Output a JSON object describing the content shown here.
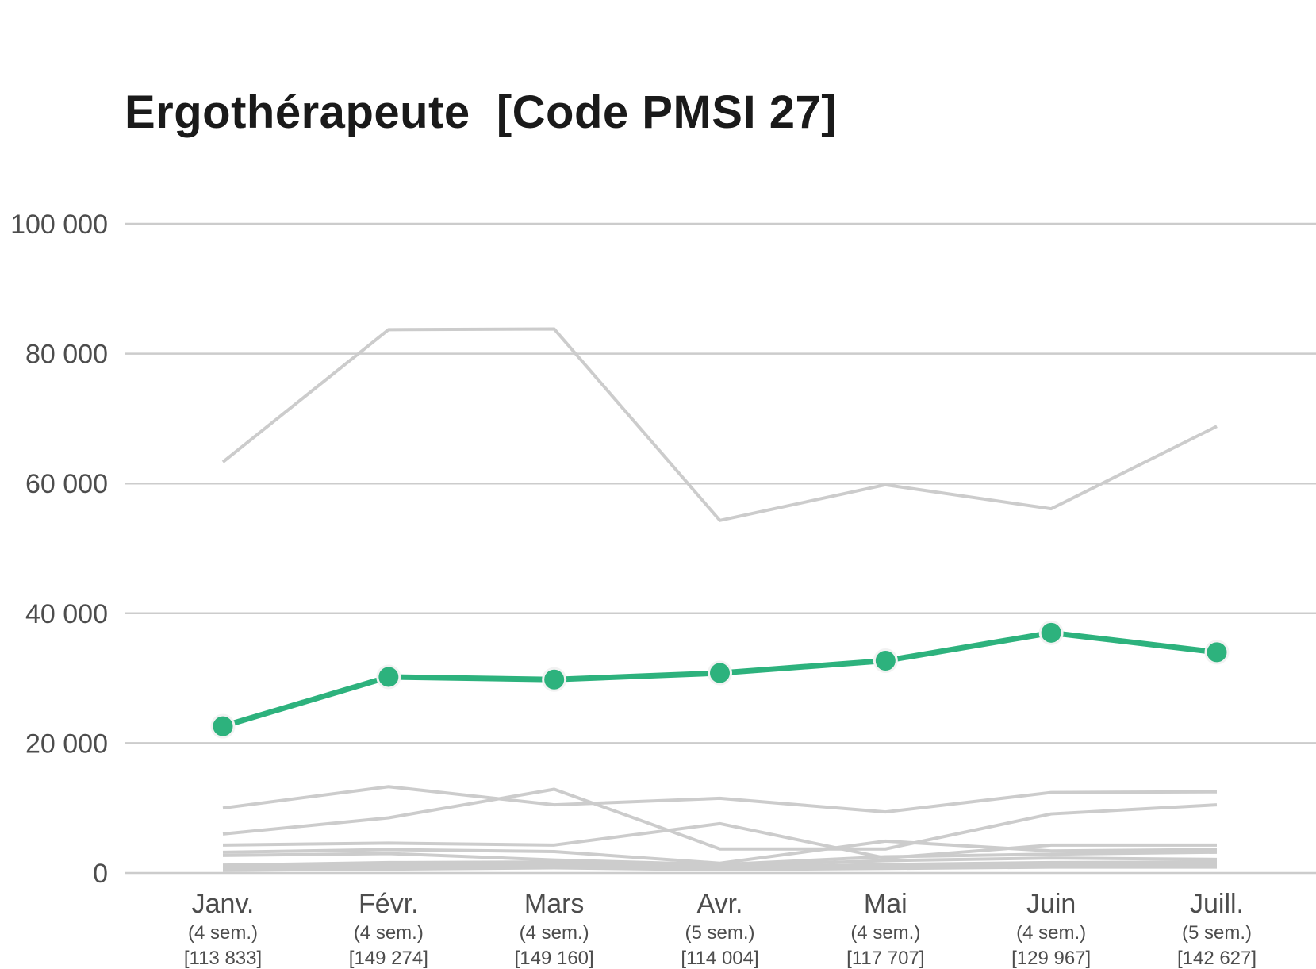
{
  "chart_data": {
    "type": "line",
    "title": "Ergothérapeute  [Code PMSI 27]",
    "xlabel": "",
    "ylabel": "",
    "ylim": [
      0,
      100000
    ],
    "yticks": [
      0,
      20000,
      40000,
      60000,
      80000,
      100000
    ],
    "ytick_labels": [
      "0",
      "20 000",
      "40 000",
      "60 000",
      "80 000",
      "100 000"
    ],
    "grid": true,
    "categories": [
      {
        "month": "Janv.",
        "weeks": "(4 sem.)",
        "total": "[113 833]"
      },
      {
        "month": "Févr.",
        "weeks": "(4 sem.)",
        "total": "[149 274]"
      },
      {
        "month": "Mars",
        "weeks": "(4 sem.)",
        "total": "[149 160]"
      },
      {
        "month": "Avr.",
        "weeks": "(5 sem.)",
        "total": "[114 004]"
      },
      {
        "month": "Mai",
        "weeks": "(4 sem.)",
        "total": "[117 707]"
      },
      {
        "month": "Juin",
        "weeks": "(4 sem.)",
        "total": "[129 967]"
      },
      {
        "month": "Juill.",
        "weeks": "(5 sem.)",
        "total": "[142 627]"
      }
    ],
    "highlight_color": "#2db27d",
    "background_color": "#cccccc",
    "highlight_series": {
      "values": [
        22600,
        30200,
        29800,
        30800,
        32700,
        37000,
        34000
      ]
    },
    "background_series": [
      {
        "values": [
          63300,
          83700,
          83800,
          54300,
          59800,
          56100,
          68800
        ]
      },
      {
        "values": [
          10000,
          13300,
          10500,
          11500,
          9400,
          12400,
          12500
        ]
      },
      {
        "values": [
          6000,
          8500,
          12900,
          3700,
          3700,
          9100,
          10500
        ]
      },
      {
        "values": [
          4300,
          4600,
          4300,
          7600,
          2300,
          4300,
          4300
        ]
      },
      {
        "values": [
          3200,
          3600,
          3300,
          1500,
          4900,
          3400,
          3600
        ]
      },
      {
        "values": [
          2700,
          3000,
          2000,
          1300,
          2500,
          2900,
          3200
        ]
      },
      {
        "values": [
          1200,
          1600,
          1700,
          1100,
          1900,
          2300,
          2100
        ]
      },
      {
        "values": [
          900,
          1200,
          1400,
          900,
          1300,
          1600,
          1700
        ]
      },
      {
        "values": [
          600,
          900,
          1100,
          700,
          1000,
          1200,
          1300
        ]
      },
      {
        "values": [
          400,
          600,
          800,
          500,
          700,
          900,
          900
        ]
      }
    ]
  }
}
